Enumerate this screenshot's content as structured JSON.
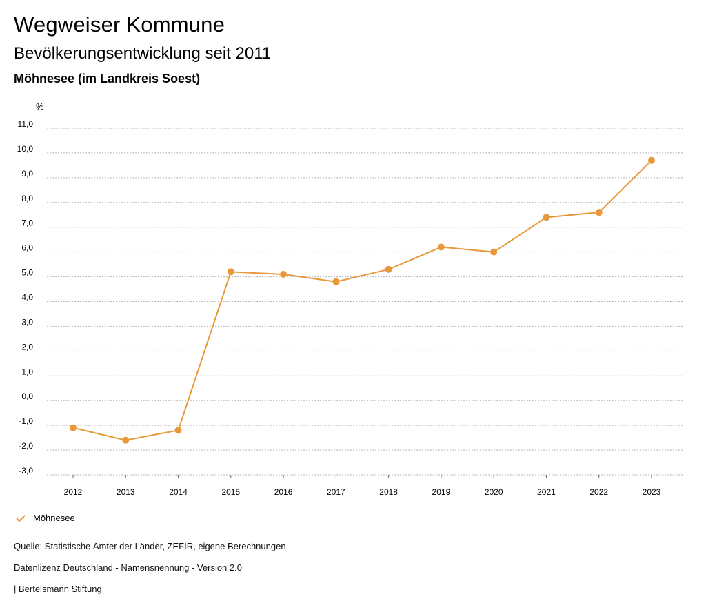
{
  "header": {
    "title": "Wegweiser Kommune",
    "subtitle": "Bevölkerungsentwicklung seit 2011",
    "region": "Möhnesee (im Landkreis Soest)"
  },
  "colors": {
    "series": "#E8983A",
    "grid": "#b5b5b5"
  },
  "chart_data": {
    "type": "line",
    "title": "Bevölkerungsentwicklung seit 2011",
    "ylabel": "%",
    "xlabel": "",
    "x": [
      "2012",
      "2013",
      "2014",
      "2015",
      "2016",
      "2017",
      "2018",
      "2019",
      "2020",
      "2021",
      "2022",
      "2023"
    ],
    "series": [
      {
        "name": "Möhnesee",
        "values": [
          -1.1,
          -1.6,
          -1.2,
          5.2,
          5.1,
          4.8,
          5.3,
          6.2,
          6.0,
          7.4,
          7.6,
          9.7
        ]
      }
    ],
    "ylim": [
      -3.0,
      11.0
    ],
    "yticks": [
      -3.0,
      -2.0,
      -1.0,
      0.0,
      1.0,
      2.0,
      3.0,
      4.0,
      5.0,
      6.0,
      7.0,
      8.0,
      9.0,
      10.0,
      11.0
    ],
    "ytick_labels": [
      "-3,0",
      "-2,0",
      "-1,0",
      "0,0",
      "1,0",
      "2,0",
      "3,0",
      "4,0",
      "5,0",
      "6,0",
      "7,0",
      "8,0",
      "9,0",
      "10,0",
      "11,0"
    ],
    "grid": true,
    "legend": "bottom-left"
  },
  "legend": {
    "label": "Möhnesee"
  },
  "footer": {
    "source": "Quelle: Statistische Ämter der Länder, ZEFIR, eigene Berechnungen",
    "license": "Datenlizenz Deutschland - Namensnennung - Version 2.0",
    "publisher": "| Bertelsmann Stiftung"
  }
}
